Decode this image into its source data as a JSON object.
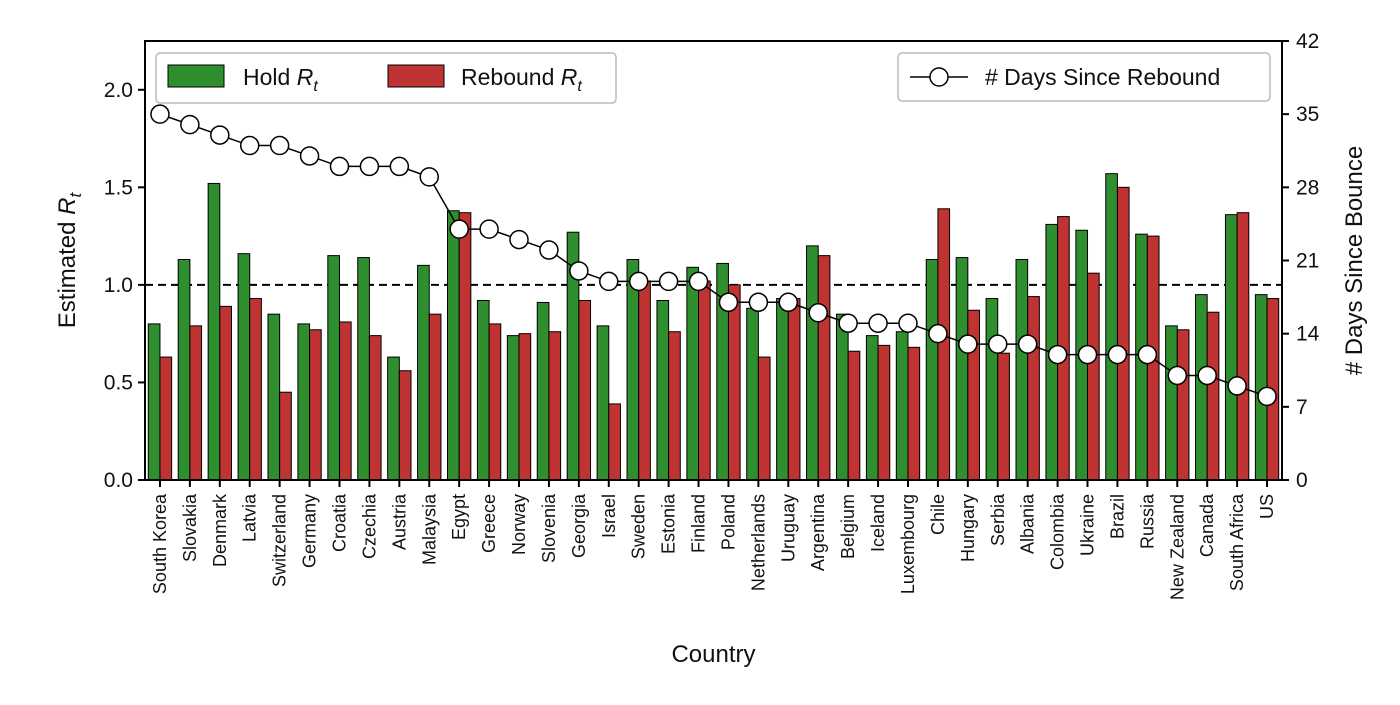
{
  "chart_data": {
    "type": "bar",
    "xlabel": "Country",
    "ylabel_left": "Estimated R_t",
    "ylabel_right": "# Days Since Bounce",
    "ylim_left": [
      0,
      2.25
    ],
    "yticks_left": [
      "0.0",
      "0.5",
      "1.0",
      "1.5",
      "2.0"
    ],
    "ylim_right": [
      0,
      42
    ],
    "yticks_right": [
      "0",
      "7",
      "14",
      "21",
      "28",
      "35",
      "42"
    ],
    "reference_line": 1.0,
    "categories": [
      "South Korea",
      "Slovakia",
      "Denmark",
      "Latvia",
      "Switzerland",
      "Germany",
      "Croatia",
      "Czechia",
      "Austria",
      "Malaysia",
      "Egypt",
      "Greece",
      "Norway",
      "Slovenia",
      "Georgia",
      "Israel",
      "Sweden",
      "Estonia",
      "Finland",
      "Poland",
      "Netherlands",
      "Uruguay",
      "Argentina",
      "Belgium",
      "Iceland",
      "Luxembourg",
      "Chile",
      "Hungary",
      "Serbia",
      "Albania",
      "Colombia",
      "Ukraine",
      "Brazil",
      "Russia",
      "New Zealand",
      "Canada",
      "South Africa",
      "US"
    ],
    "series": [
      {
        "name": "Hold",
        "legend_label": "Hold R",
        "legend_sub": "t",
        "type": "bar",
        "axis": "left",
        "color": "#2f8f2f",
        "values": [
          0.8,
          1.13,
          1.52,
          1.16,
          0.85,
          0.8,
          1.15,
          1.14,
          0.63,
          1.1,
          1.38,
          0.92,
          0.74,
          0.91,
          1.27,
          0.79,
          1.13,
          0.92,
          1.09,
          1.11,
          0.88,
          0.93,
          1.2,
          0.85,
          0.74,
          0.76,
          1.13,
          1.14,
          0.93,
          1.13,
          1.31,
          1.28,
          1.57,
          1.26,
          0.79,
          0.95,
          1.36,
          0.95
        ]
      },
      {
        "name": "Rebound",
        "legend_label": "Rebound R",
        "legend_sub": "t",
        "type": "bar",
        "axis": "left",
        "color": "#c03333",
        "values": [
          0.63,
          0.79,
          0.89,
          0.93,
          0.45,
          0.77,
          0.81,
          0.74,
          0.56,
          0.85,
          1.37,
          0.8,
          0.75,
          0.76,
          0.92,
          0.39,
          1.02,
          0.76,
          1.02,
          1.0,
          0.63,
          0.93,
          1.15,
          0.66,
          0.69,
          0.68,
          1.39,
          0.87,
          0.65,
          0.94,
          1.35,
          1.06,
          1.5,
          1.25,
          0.77,
          0.86,
          1.37,
          0.93
        ]
      },
      {
        "name": "# Days Since Rebound",
        "type": "line",
        "axis": "right",
        "color": "#000000",
        "values": [
          35,
          34,
          33,
          32,
          32,
          31,
          30,
          30,
          30,
          29,
          24,
          24,
          23,
          22,
          20,
          19,
          19,
          19,
          19,
          17,
          17,
          17,
          16,
          15,
          15,
          15,
          14,
          13,
          13,
          13,
          12,
          12,
          12,
          12,
          10,
          10,
          9,
          8
        ]
      }
    ]
  }
}
